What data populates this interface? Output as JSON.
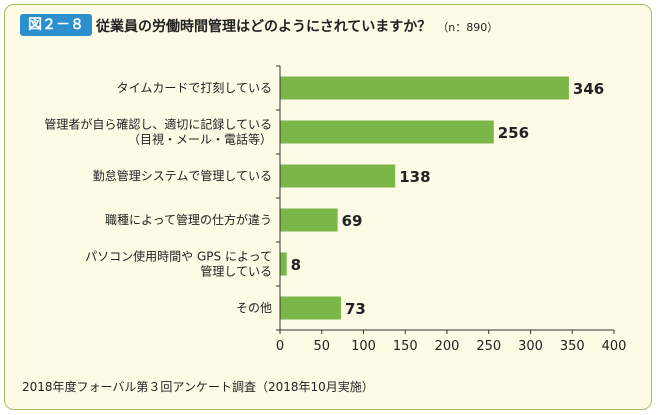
{
  "figure": {
    "badge": "図２－８",
    "title": "従業員の労働時間管理はどのようにされていますか？",
    "note": "（n：890）",
    "footer": "2018年度フォーバル第３回アンケート調査（2018年10月実施）"
  },
  "colors": {
    "bar": "#7ab648",
    "frame": "#9fbf5a",
    "badge": "#2e8fcf",
    "background": "#fdfbe6"
  },
  "chart_data": {
    "type": "bar",
    "orientation": "horizontal",
    "categories": [
      [
        "タイムカードで打刻している"
      ],
      [
        "管理者が自ら確認し、適切に記録している",
        "（目視・メール・電話等）"
      ],
      [
        "勤怠管理システムで管理している"
      ],
      [
        "職種によって管理の仕方が違う"
      ],
      [
        "パソコン使用時間や GPS によって",
        "管理している"
      ],
      [
        "その他"
      ]
    ],
    "values": [
      346,
      256,
      138,
      69,
      8,
      73
    ],
    "xlim": [
      0,
      400
    ],
    "xticks": [
      0,
      50,
      100,
      150,
      200,
      250,
      300,
      350,
      400
    ],
    "grid": false
  }
}
